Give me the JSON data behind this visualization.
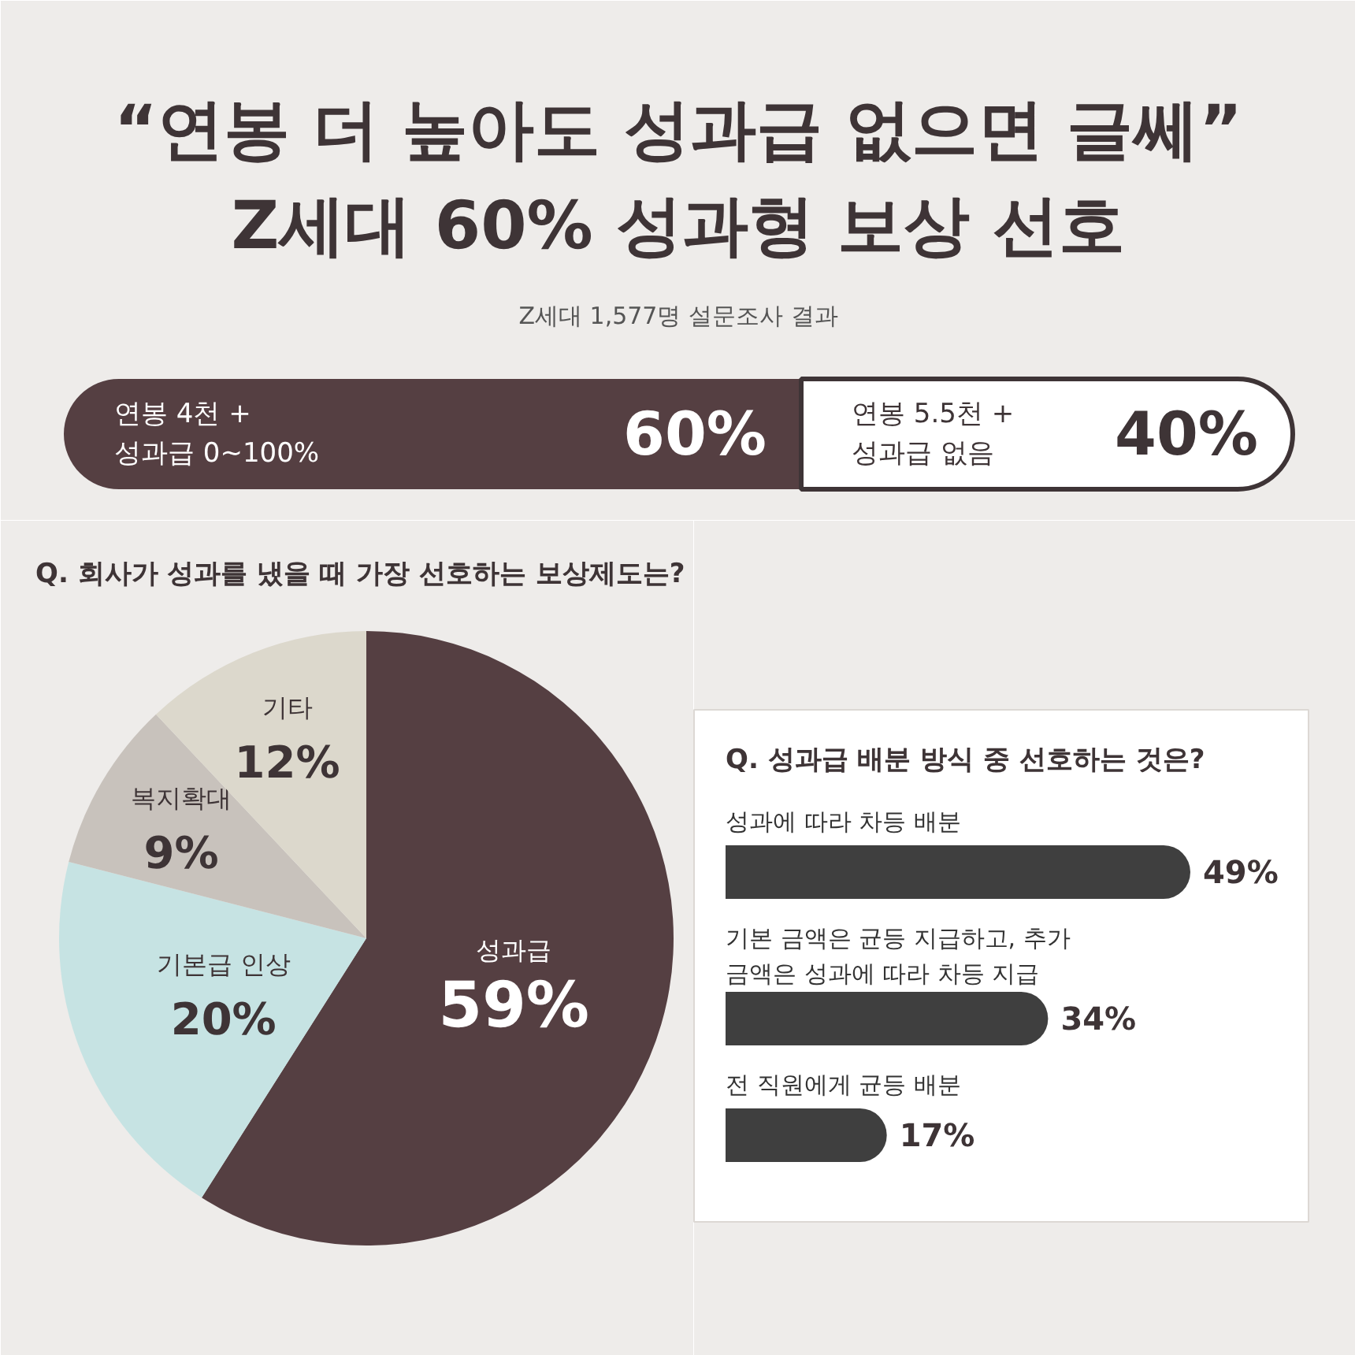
{
  "chart_data": [
    {
      "type": "bar",
      "orientation": "horizontal",
      "stacked": true,
      "title": "“연봉 더 높아도 성과급 없으면 글쎄”\nZ세대 60% 성과형 보상 선호",
      "subtitle": "Z세대 1,577명 설문조사 결과",
      "categories": [
        null
      ],
      "series": [
        {
          "name": "연봉 4천 + 성과급 0~100%",
          "color": "#553f42",
          "values": [
            60
          ],
          "value_labels": [
            "60%"
          ]
        },
        {
          "name": "연봉 5.5천 + 성과급 없음",
          "color": "#ffffff",
          "values": [
            40
          ],
          "value_labels": [
            "40%"
          ]
        }
      ]
    },
    {
      "type": "pie",
      "title": "Q. 회사가 성과를 냈을 때 가장 선호하는 보상제도는?",
      "categories": [
        "성과급",
        "기본급 인상",
        "복지확대",
        "기타"
      ],
      "values": [
        59,
        20,
        9,
        12
      ],
      "colors": [
        "#553f42",
        "#c6e3e3",
        "#c8c2bc",
        "#dcd8cc"
      ],
      "value_labels": [
        "59%",
        "20%",
        "9%",
        "12%"
      ]
    },
    {
      "type": "bar",
      "orientation": "horizontal",
      "title": "Q. 성과급 배분 방식 중 선호하는 것은?",
      "categories": [
        "성과에 따라 차등 배분",
        "기본 금액은 균등 지급하고, 추가 금액은 성과에 따라 차등 지급",
        "전 직원에게 균등 배분"
      ],
      "values": [
        49,
        34,
        17
      ],
      "color": "#3f3f3f",
      "value_labels": [
        "49%",
        "34%",
        "17%"
      ]
    }
  ]
}
